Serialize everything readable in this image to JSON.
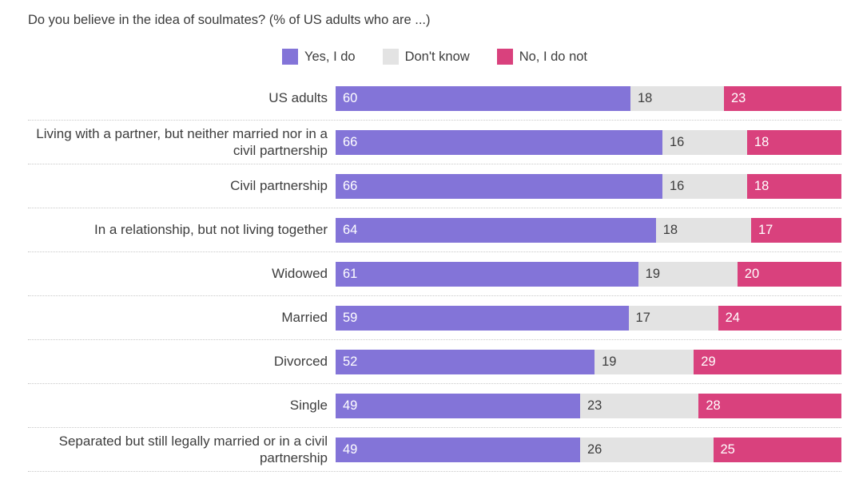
{
  "title": "Do you believe in the idea of soulmates? (% of US adults who are ...)",
  "legend": [
    {
      "label": "Yes, I do",
      "color": "#8374d8"
    },
    {
      "label": "Don't know",
      "color": "#e3e3e3"
    },
    {
      "label": "No, I do not",
      "color": "#d9417d"
    }
  ],
  "chart_data": {
    "type": "bar",
    "orientation": "horizontal",
    "stacked": true,
    "normalized_to_100": true,
    "title": "Do you believe in the idea of soulmates? (% of US adults who are ...)",
    "xlabel": "",
    "ylabel": "",
    "xlim": [
      0,
      100
    ],
    "grid": false,
    "legend_position": "top",
    "categories": [
      "US adults",
      "Living with a partner, but neither married nor in a civil partnership",
      "Civil partnership",
      "In a relationship, but not living together",
      "Widowed",
      "Married",
      "Divorced",
      "Single",
      "Separated but still legally married or in a civil partnership"
    ],
    "series": [
      {
        "name": "Yes, I do",
        "key": "yes-i-do",
        "color": "#8374d8",
        "label_color": "#ffffff",
        "values": [
          60,
          66,
          66,
          64,
          61,
          59,
          52,
          49,
          49
        ]
      },
      {
        "name": "Don't know",
        "key": "dont-know",
        "color": "#e3e3e3",
        "label_color": "#3d3d3d",
        "values": [
          18,
          16,
          16,
          18,
          19,
          17,
          19,
          23,
          26
        ]
      },
      {
        "name": "No, I do not",
        "key": "no-i-do-not",
        "color": "#d9417d",
        "label_color": "#ffffff",
        "values": [
          23,
          18,
          18,
          17,
          20,
          24,
          29,
          28,
          25
        ]
      }
    ]
  }
}
